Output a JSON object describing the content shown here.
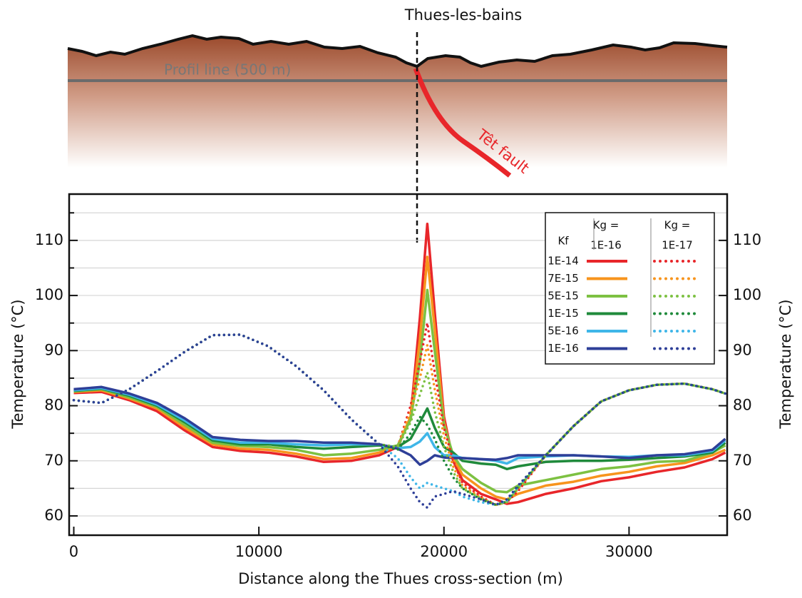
{
  "chart_data": {
    "type": "line",
    "annotations": {
      "town": "Thues-les-bains",
      "profile": "Profil line (500 m)",
      "fault": "Têt fault"
    },
    "x_label": "Distance along the Thues cross-section (m)",
    "y_label": "Temperature (°C)",
    "y2_label": "Temperature (°C)",
    "xlim": [
      -250,
      35300
    ],
    "xticks": [
      0,
      10000,
      20000,
      30000
    ],
    "ylim": [
      56.5,
      118.4
    ],
    "yticks": [
      60,
      70,
      80,
      90,
      100,
      110
    ],
    "minor_yticks": [
      65,
      75,
      85,
      95,
      105,
      115
    ],
    "y2lim": [
      56.5,
      118.4
    ],
    "y2ticks": [
      60,
      70,
      80,
      90,
      100,
      110
    ],
    "grid": true,
    "legend": {
      "kf_label": "Kf",
      "groups": [
        [
          "Kg =",
          "1E-16"
        ],
        [
          "Kg =",
          "1E-17"
        ]
      ]
    },
    "x": [
      0,
      1500,
      3000,
      4500,
      6000,
      7500,
      9000,
      10500,
      12000,
      13500,
      15000,
      16500,
      17500,
      18200,
      18700,
      19100,
      19500,
      20000,
      20500,
      21000,
      22000,
      22800,
      23400,
      24000,
      25500,
      27000,
      28500,
      30000,
      31500,
      33000,
      34500,
      35200
    ],
    "series": [
      {
        "name": "1E-14",
        "group": 0,
        "style": "solid",
        "color": "#e8262a",
        "values": [
          82.3,
          82.5,
          81,
          79,
          75.5,
          72.5,
          71.8,
          71.5,
          70.8,
          69.8,
          70,
          71,
          72.5,
          78,
          96,
          113,
          97,
          78,
          70,
          66.5,
          64,
          63,
          62.2,
          62.5,
          64,
          65,
          66.3,
          67,
          68,
          68.8,
          70.3,
          71.5
        ]
      },
      {
        "name": "7E-15",
        "group": 0,
        "style": "solid",
        "color": "#f7941d",
        "values": [
          82.5,
          82.8,
          81.3,
          79.5,
          76,
          73,
          72.2,
          72,
          71.3,
          70.3,
          70.5,
          71.5,
          72.7,
          78,
          92,
          107,
          94,
          77,
          70.5,
          67.5,
          65,
          63.5,
          63,
          64,
          65.5,
          66.2,
          67.3,
          68,
          69,
          69.6,
          71,
          72
        ]
      },
      {
        "name": "5E-15",
        "group": 0,
        "style": "solid",
        "color": "#7dc142",
        "values": [
          82.6,
          83,
          81.5,
          79.8,
          76.5,
          73.3,
          72.7,
          72.5,
          72,
          71,
          71.3,
          72,
          72.8,
          77.5,
          88,
          101,
          90,
          76.5,
          71,
          68.5,
          66,
          64.5,
          64.3,
          65.5,
          66.5,
          67.5,
          68.5,
          69,
          69.8,
          70,
          71.5,
          72.8
        ]
      },
      {
        "name": "1E-15",
        "group": 0,
        "style": "solid",
        "color": "#1f8a3b",
        "values": [
          82.7,
          83.1,
          81.8,
          80,
          77,
          73.7,
          73,
          73,
          72.5,
          72.2,
          72.5,
          72.8,
          72.5,
          74,
          77,
          79.5,
          76,
          72.5,
          71.5,
          70,
          69.5,
          69.3,
          68.5,
          69,
          69.8,
          70,
          70,
          70.2,
          70.5,
          70.8,
          71.5,
          73.3
        ]
      },
      {
        "name": "5E-16",
        "group": 0,
        "style": "solid",
        "color": "#3fb6e8",
        "values": [
          82.8,
          83.2,
          82,
          80.2,
          77.3,
          74,
          73.3,
          73.3,
          73,
          72.8,
          73,
          73,
          72.3,
          72.5,
          73.5,
          75,
          72.5,
          71,
          71,
          70.5,
          70.3,
          70,
          69.5,
          70.5,
          70.8,
          71,
          70.8,
          70.7,
          71,
          71,
          71.8,
          73.7
        ]
      },
      {
        "name": "1E-16",
        "group": 0,
        "style": "solid",
        "color": "#2e3f98",
        "values": [
          83,
          83.4,
          82.2,
          80.5,
          77.7,
          74.3,
          73.8,
          73.6,
          73.6,
          73.3,
          73.3,
          73,
          72.2,
          71,
          69.3,
          70,
          71,
          70.6,
          70.5,
          70.5,
          70.3,
          70.2,
          70.5,
          71,
          71,
          71,
          70.8,
          70.5,
          71,
          71.2,
          72,
          74
        ]
      },
      {
        "name": "1E-14",
        "group": 1,
        "style": "dotted",
        "color": "#e8262a",
        "values": [
          81,
          80.5,
          83,
          86.3,
          89.8,
          92.8,
          92.9,
          90.8,
          87.2,
          82.8,
          77.5,
          73,
          72.5,
          80,
          88,
          95,
          86,
          76,
          70,
          66,
          63.5,
          62,
          62.5,
          64.5,
          71,
          76.3,
          80.8,
          82.8,
          83.8,
          84,
          83,
          82.2
        ]
      },
      {
        "name": "7E-15",
        "group": 1,
        "style": "dotted",
        "color": "#f7941d",
        "values": [
          81,
          80.5,
          83,
          86.3,
          89.8,
          92.8,
          92.9,
          90.8,
          87.2,
          82.8,
          77.5,
          73,
          72.5,
          79,
          85,
          91,
          83,
          74.5,
          69,
          65.5,
          63.3,
          62,
          62.5,
          64.8,
          71,
          76.3,
          80.8,
          82.8,
          83.8,
          84,
          83,
          82.2
        ]
      },
      {
        "name": "5E-15",
        "group": 1,
        "style": "dotted",
        "color": "#7dc142",
        "values": [
          81,
          80.5,
          83,
          86.3,
          89.8,
          92.8,
          92.9,
          90.8,
          87.2,
          82.8,
          77.5,
          73,
          72.5,
          77,
          82,
          86,
          79,
          72.5,
          68,
          65,
          63.2,
          62,
          62.5,
          65,
          71,
          76.3,
          80.8,
          82.8,
          83.8,
          84,
          83,
          82.2
        ]
      },
      {
        "name": "1E-15",
        "group": 1,
        "style": "dotted",
        "color": "#1f8a3b",
        "values": [
          81,
          80.5,
          83,
          86.3,
          89.8,
          92.8,
          92.9,
          90.8,
          87.2,
          82.8,
          77.5,
          73,
          72,
          75,
          78,
          76.5,
          74,
          70,
          67,
          65,
          63,
          62,
          62.6,
          65.2,
          71,
          76.3,
          80.8,
          82.8,
          83.8,
          84,
          83,
          82.2
        ]
      },
      {
        "name": "5E-16",
        "group": 1,
        "style": "dotted",
        "color": "#3fb6e8",
        "values": [
          81,
          80.5,
          83,
          86.3,
          89.8,
          92.8,
          92.9,
          90.8,
          87.2,
          82.8,
          77.5,
          73,
          70.5,
          67,
          65,
          66,
          65.5,
          65,
          64.5,
          63.5,
          62.5,
          62,
          62.8,
          65.3,
          71,
          76.3,
          80.8,
          82.8,
          83.8,
          84,
          83,
          82.2
        ]
      },
      {
        "name": "1E-16",
        "group": 1,
        "style": "dotted",
        "color": "#2e3f98",
        "values": [
          81,
          80.5,
          83,
          86.3,
          89.8,
          92.8,
          92.9,
          90.8,
          87.2,
          82.8,
          77.5,
          73,
          69,
          65,
          62.5,
          61.5,
          63.5,
          64,
          64.5,
          64,
          63,
          62,
          63,
          65.5,
          71,
          76.3,
          80.8,
          82.8,
          83.8,
          84,
          83,
          82.2
        ]
      }
    ]
  }
}
